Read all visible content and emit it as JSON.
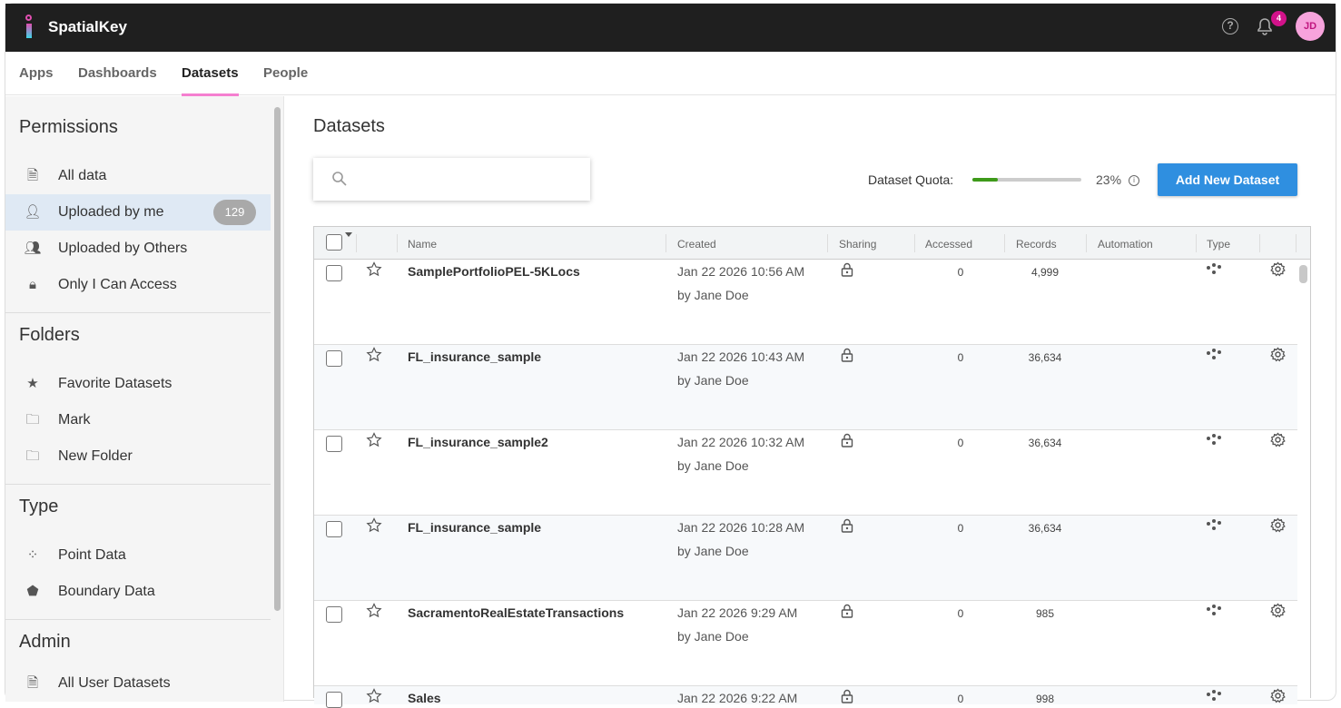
{
  "app": {
    "brand": "SpatialKey",
    "notifications": "4",
    "avatar_initials": "JD",
    "accent": "#f57fd0"
  },
  "nav": {
    "tabs": [
      {
        "label": "Apps"
      },
      {
        "label": "Dashboards"
      },
      {
        "label": "Datasets",
        "active": true
      },
      {
        "label": "People"
      }
    ]
  },
  "sidebar": {
    "permissions_title": "Permissions",
    "permissions": [
      {
        "label": "All data",
        "icon": "document-icon"
      },
      {
        "label": "Uploaded by me",
        "icon": "user-plus-icon",
        "count": "129",
        "selected": true
      },
      {
        "label": "Uploaded by Others",
        "icon": "users-icon"
      },
      {
        "label": "Only I Can Access",
        "icon": "lock-icon"
      }
    ],
    "folders_title": "Folders",
    "folders": [
      {
        "label": "Favorite Datasets",
        "icon": "star-icon"
      },
      {
        "label": "Mark",
        "icon": "folder-icon"
      },
      {
        "label": "New Folder",
        "icon": "folder-plus-icon"
      }
    ],
    "type_title": "Type",
    "types": [
      {
        "label": "Point Data",
        "icon": "points-icon"
      },
      {
        "label": "Boundary Data",
        "icon": "pentagon-icon"
      }
    ],
    "admin_title": "Admin",
    "admin": [
      {
        "label": "All User Datasets",
        "icon": "document-icon"
      }
    ]
  },
  "main": {
    "title": "Datasets",
    "search_placeholder": "",
    "quota_label": "Dataset Quota:",
    "quota_percent": 23,
    "quota_text": "23%",
    "add_button": "Add New Dataset",
    "columns": [
      "Name",
      "Created",
      "Sharing",
      "Accessed",
      "Records",
      "Automation",
      "Type"
    ],
    "rows": [
      {
        "name": "SamplePortfolioPEL-5KLocs",
        "created": "Jan 22 2026 10:56 AM",
        "by": "by Jane Doe",
        "accessed": "0",
        "records": "4,999"
      },
      {
        "name": "FL_insurance_sample",
        "created": "Jan 22 2026 10:43 AM",
        "by": "by Jane Doe",
        "accessed": "0",
        "records": "36,634"
      },
      {
        "name": "FL_insurance_sample2",
        "created": "Jan 22 2026 10:32 AM",
        "by": "by Jane Doe",
        "accessed": "0",
        "records": "36,634"
      },
      {
        "name": "FL_insurance_sample",
        "created": "Jan 22 2026 10:28 AM",
        "by": "by Jane Doe",
        "accessed": "0",
        "records": "36,634"
      },
      {
        "name": "SacramentoRealEstateTransactions",
        "created": "Jan 22 2026 9:29 AM",
        "by": "by Jane Doe",
        "accessed": "0",
        "records": "985"
      },
      {
        "name": "Sales",
        "created": "Jan 22 2026 9:22 AM",
        "by": "",
        "accessed": "0",
        "records": "998"
      }
    ]
  }
}
